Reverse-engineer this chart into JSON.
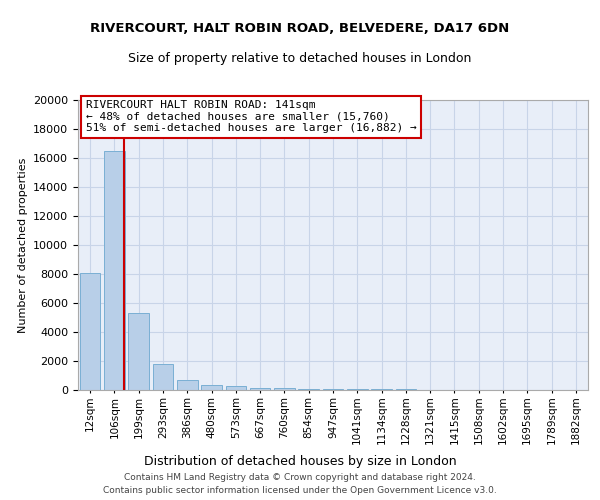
{
  "title1": "RIVERCOURT, HALT ROBIN ROAD, BELVEDERE, DA17 6DN",
  "title2": "Size of property relative to detached houses in London",
  "xlabel": "Distribution of detached houses by size in London",
  "ylabel": "Number of detached properties",
  "categories": [
    "12sqm",
    "106sqm",
    "199sqm",
    "293sqm",
    "386sqm",
    "480sqm",
    "573sqm",
    "667sqm",
    "760sqm",
    "854sqm",
    "947sqm",
    "1041sqm",
    "1134sqm",
    "1228sqm",
    "1321sqm",
    "1415sqm",
    "1508sqm",
    "1602sqm",
    "1695sqm",
    "1789sqm",
    "1882sqm"
  ],
  "values": [
    8100,
    16500,
    5300,
    1800,
    700,
    350,
    250,
    150,
    140,
    100,
    80,
    60,
    50,
    40,
    30,
    25,
    20,
    15,
    12,
    10,
    8
  ],
  "bar_color": "#b8cfe8",
  "bar_edge_color": "#7aafd4",
  "annotation_line1": "RIVERCOURT HALT ROBIN ROAD: 141sqm",
  "annotation_line2": "← 48% of detached houses are smaller (15,760)",
  "annotation_line3": "51% of semi-detached houses are larger (16,882) →",
  "annotation_box_color": "#ffffff",
  "annotation_box_edge": "#cc0000",
  "vline_color": "#cc0000",
  "ylim": [
    0,
    20000
  ],
  "yticks": [
    0,
    2000,
    4000,
    6000,
    8000,
    10000,
    12000,
    14000,
    16000,
    18000,
    20000
  ],
  "grid_color": "#c8d4e8",
  "background_color": "#e8eef8",
  "footer1": "Contains HM Land Registry data © Crown copyright and database right 2024.",
  "footer2": "Contains public sector information licensed under the Open Government Licence v3.0."
}
